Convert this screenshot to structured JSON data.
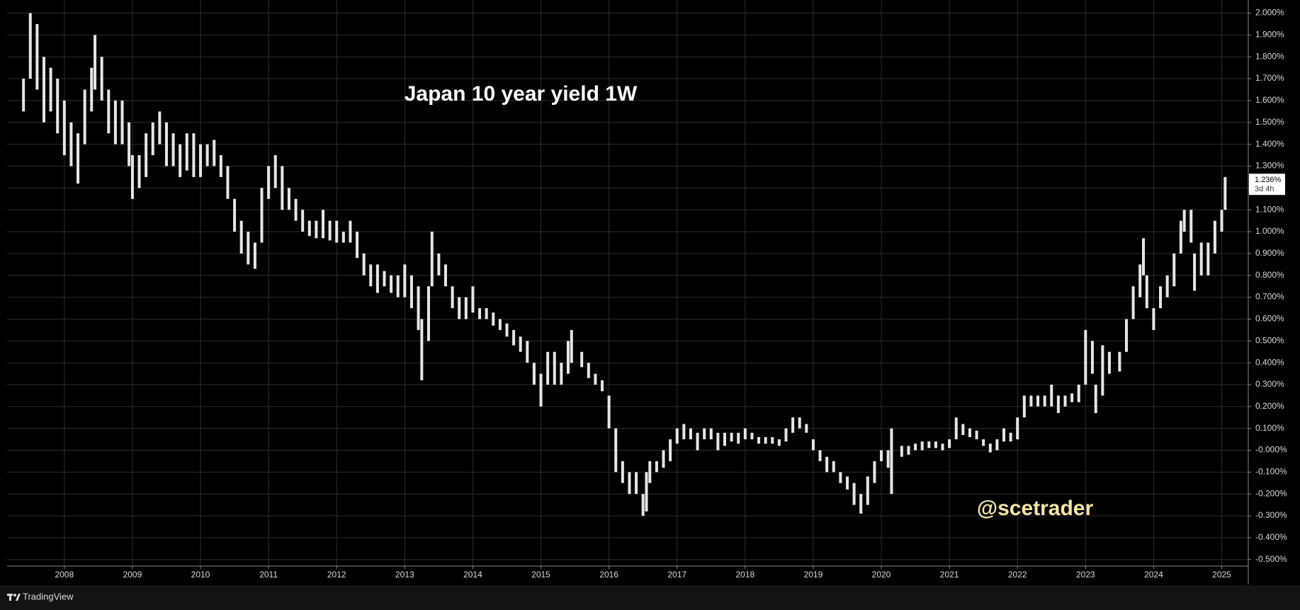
{
  "chart_data": {
    "type": "ohlc",
    "title": "Japan 10 year yield 1W",
    "watermark": "@scetrader",
    "brand": "TradingView",
    "last_price": {
      "value": 1.236,
      "label": "1.236%"
    },
    "countdown": "3d 4h",
    "color": "#e6e6e6",
    "grid": true,
    "xlim": [
      2007.159,
      2025.39
    ],
    "xticks": [
      2008,
      2009,
      2010,
      2011,
      2012,
      2013,
      2014,
      2015,
      2016,
      2017,
      2018,
      2019,
      2020,
      2021,
      2022,
      2023,
      2024,
      2025
    ],
    "ylim": [
      -0.53,
      2.06
    ],
    "yticks": [
      {
        "value": 2.0,
        "label": "2.000%"
      },
      {
        "value": 1.9,
        "label": "1.900%"
      },
      {
        "value": 1.8,
        "label": "1.800%"
      },
      {
        "value": 1.7,
        "label": "1.700%"
      },
      {
        "value": 1.6,
        "label": "1.600%"
      },
      {
        "value": 1.5,
        "label": "1.500%"
      },
      {
        "value": 1.4,
        "label": "1.400%"
      },
      {
        "value": 1.3,
        "label": "1.300%"
      },
      {
        "value": 1.2,
        "label": "1.200%"
      },
      {
        "value": 1.1,
        "label": "1.100%"
      },
      {
        "value": 1.0,
        "label": "1.000%"
      },
      {
        "value": 0.9,
        "label": "0.900%"
      },
      {
        "value": 0.8,
        "label": "0.800%"
      },
      {
        "value": 0.7,
        "label": "0.700%"
      },
      {
        "value": 0.6,
        "label": "0.600%"
      },
      {
        "value": 0.5,
        "label": "0.500%"
      },
      {
        "value": 0.4,
        "label": "0.400%"
      },
      {
        "value": 0.3,
        "label": "0.300%"
      },
      {
        "value": 0.2,
        "label": "0.200%"
      },
      {
        "value": 0.1,
        "label": "0.100%"
      },
      {
        "value": 0,
        "label": "-0.000%"
      },
      {
        "value": -0.1,
        "label": "-0.100%"
      },
      {
        "value": -0.2,
        "label": "-0.200%"
      },
      {
        "value": -0.3,
        "label": "-0.300%"
      },
      {
        "value": -0.4,
        "label": "-0.400%"
      },
      {
        "value": -0.5,
        "label": "-0.500%"
      }
    ],
    "x": [
      2007.4,
      2007.5,
      2007.6,
      2007.7,
      2007.8,
      2007.9,
      2008.0,
      2008.1,
      2008.2,
      2008.3,
      2008.4,
      2008.45,
      2008.55,
      2008.65,
      2008.75,
      2008.85,
      2008.95,
      2009.0,
      2009.1,
      2009.2,
      2009.3,
      2009.4,
      2009.5,
      2009.6,
      2009.7,
      2009.8,
      2009.9,
      2010.0,
      2010.1,
      2010.2,
      2010.3,
      2010.4,
      2010.5,
      2010.6,
      2010.7,
      2010.8,
      2010.9,
      2011.0,
      2011.1,
      2011.2,
      2011.3,
      2011.4,
      2011.5,
      2011.6,
      2011.7,
      2011.8,
      2011.9,
      2012.0,
      2012.1,
      2012.2,
      2012.3,
      2012.4,
      2012.5,
      2012.6,
      2012.7,
      2012.8,
      2012.9,
      2013.0,
      2013.1,
      2013.2,
      2013.25,
      2013.35,
      2013.4,
      2013.5,
      2013.6,
      2013.7,
      2013.8,
      2013.9,
      2014.0,
      2014.1,
      2014.2,
      2014.3,
      2014.4,
      2014.5,
      2014.6,
      2014.7,
      2014.8,
      2014.9,
      2015.0,
      2015.1,
      2015.2,
      2015.3,
      2015.4,
      2015.45,
      2015.6,
      2015.7,
      2015.8,
      2015.9,
      2016.0,
      2016.1,
      2016.2,
      2016.3,
      2016.4,
      2016.5,
      2016.55,
      2016.6,
      2016.7,
      2016.8,
      2016.9,
      2017.0,
      2017.1,
      2017.2,
      2017.3,
      2017.4,
      2017.5,
      2017.6,
      2017.7,
      2017.8,
      2017.9,
      2018.0,
      2018.1,
      2018.2,
      2018.3,
      2018.4,
      2018.5,
      2018.6,
      2018.7,
      2018.8,
      2018.9,
      2019.0,
      2019.1,
      2019.2,
      2019.3,
      2019.4,
      2019.5,
      2019.6,
      2019.7,
      2019.8,
      2019.9,
      2020.0,
      2020.1,
      2020.15,
      2020.3,
      2020.4,
      2020.5,
      2020.6,
      2020.7,
      2020.8,
      2020.9,
      2021.0,
      2021.1,
      2021.2,
      2021.3,
      2021.4,
      2021.5,
      2021.6,
      2021.7,
      2021.8,
      2021.9,
      2022.0,
      2022.1,
      2022.2,
      2022.3,
      2022.4,
      2022.5,
      2022.6,
      2022.7,
      2022.8,
      2022.9,
      2023.0,
      2023.1,
      2023.15,
      2023.25,
      2023.35,
      2023.5,
      2023.6,
      2023.7,
      2023.8,
      2023.85,
      2023.9,
      2024.0,
      2024.1,
      2024.2,
      2024.3,
      2024.4,
      2024.45,
      2024.55,
      2024.6,
      2024.7,
      2024.8,
      2024.9,
      2025.0,
      2025.05
    ],
    "high": [
      1.7,
      2.0,
      1.95,
      1.8,
      1.75,
      1.7,
      1.6,
      1.5,
      1.45,
      1.65,
      1.75,
      1.9,
      1.8,
      1.65,
      1.6,
      1.6,
      1.5,
      1.35,
      1.35,
      1.45,
      1.5,
      1.55,
      1.5,
      1.45,
      1.4,
      1.45,
      1.45,
      1.4,
      1.4,
      1.42,
      1.35,
      1.3,
      1.15,
      1.05,
      1.0,
      0.95,
      1.2,
      1.3,
      1.35,
      1.3,
      1.2,
      1.15,
      1.1,
      1.05,
      1.05,
      1.1,
      1.05,
      1.05,
      1.0,
      1.05,
      1.0,
      0.9,
      0.85,
      0.85,
      0.82,
      0.8,
      0.8,
      0.85,
      0.8,
      0.75,
      0.6,
      0.75,
      1.0,
      0.9,
      0.85,
      0.75,
      0.7,
      0.7,
      0.75,
      0.65,
      0.65,
      0.63,
      0.6,
      0.58,
      0.55,
      0.52,
      0.5,
      0.4,
      0.35,
      0.45,
      0.45,
      0.4,
      0.5,
      0.55,
      0.45,
      0.4,
      0.35,
      0.32,
      0.25,
      0.1,
      -0.05,
      -0.1,
      -0.1,
      -0.2,
      -0.1,
      -0.05,
      -0.05,
      0.0,
      0.05,
      0.1,
      0.12,
      0.1,
      0.08,
      0.1,
      0.1,
      0.08,
      0.08,
      0.08,
      0.08,
      0.1,
      0.08,
      0.06,
      0.06,
      0.06,
      0.05,
      0.1,
      0.15,
      0.15,
      0.12,
      0.05,
      0.0,
      -0.03,
      -0.05,
      -0.1,
      -0.12,
      -0.15,
      -0.2,
      -0.12,
      -0.05,
      0.0,
      0.0,
      0.1,
      0.02,
      0.02,
      0.03,
      0.04,
      0.04,
      0.04,
      0.03,
      0.05,
      0.15,
      0.12,
      0.1,
      0.09,
      0.05,
      0.03,
      0.05,
      0.1,
      0.08,
      0.15,
      0.25,
      0.25,
      0.25,
      0.25,
      0.3,
      0.25,
      0.25,
      0.26,
      0.3,
      0.55,
      0.5,
      0.3,
      0.48,
      0.45,
      0.45,
      0.6,
      0.75,
      0.85,
      0.97,
      0.8,
      0.65,
      0.75,
      0.8,
      0.9,
      1.05,
      1.1,
      1.1,
      0.9,
      0.95,
      0.95,
      1.05,
      1.1,
      1.25
    ],
    "low": [
      1.55,
      1.7,
      1.65,
      1.5,
      1.55,
      1.45,
      1.35,
      1.3,
      1.22,
      1.4,
      1.55,
      1.65,
      1.6,
      1.45,
      1.4,
      1.4,
      1.3,
      1.15,
      1.2,
      1.25,
      1.35,
      1.4,
      1.3,
      1.3,
      1.25,
      1.28,
      1.25,
      1.25,
      1.3,
      1.3,
      1.25,
      1.15,
      1.0,
      0.9,
      0.85,
      0.83,
      0.95,
      1.15,
      1.2,
      1.1,
      1.1,
      1.05,
      1.0,
      0.98,
      0.97,
      0.97,
      0.96,
      0.95,
      0.95,
      0.95,
      0.88,
      0.8,
      0.75,
      0.72,
      0.75,
      0.72,
      0.7,
      0.7,
      0.65,
      0.55,
      0.32,
      0.5,
      0.75,
      0.8,
      0.75,
      0.65,
      0.6,
      0.6,
      0.63,
      0.6,
      0.6,
      0.57,
      0.55,
      0.52,
      0.48,
      0.45,
      0.4,
      0.3,
      0.2,
      0.3,
      0.3,
      0.3,
      0.35,
      0.4,
      0.38,
      0.33,
      0.3,
      0.27,
      0.1,
      -0.1,
      -0.15,
      -0.2,
      -0.2,
      -0.3,
      -0.28,
      -0.15,
      -0.1,
      -0.08,
      -0.05,
      0.03,
      0.05,
      0.05,
      0.0,
      0.05,
      0.05,
      0.0,
      0.02,
      0.04,
      0.03,
      0.05,
      0.05,
      0.03,
      0.03,
      0.03,
      0.02,
      0.04,
      0.08,
      0.1,
      0.08,
      0.0,
      -0.05,
      -0.1,
      -0.1,
      -0.15,
      -0.18,
      -0.25,
      -0.29,
      -0.25,
      -0.15,
      -0.05,
      -0.08,
      -0.2,
      -0.03,
      -0.02,
      0.0,
      0.0,
      0.01,
      0.01,
      0.0,
      0.01,
      0.05,
      0.07,
      0.06,
      0.05,
      0.02,
      -0.01,
      0.0,
      0.04,
      0.04,
      0.05,
      0.15,
      0.2,
      0.2,
      0.2,
      0.2,
      0.17,
      0.2,
      0.22,
      0.22,
      0.3,
      0.35,
      0.17,
      0.25,
      0.35,
      0.36,
      0.45,
      0.6,
      0.7,
      0.8,
      0.65,
      0.55,
      0.65,
      0.7,
      0.75,
      0.9,
      1.0,
      0.95,
      0.73,
      0.8,
      0.8,
      0.9,
      1.0,
      1.1
    ]
  }
}
